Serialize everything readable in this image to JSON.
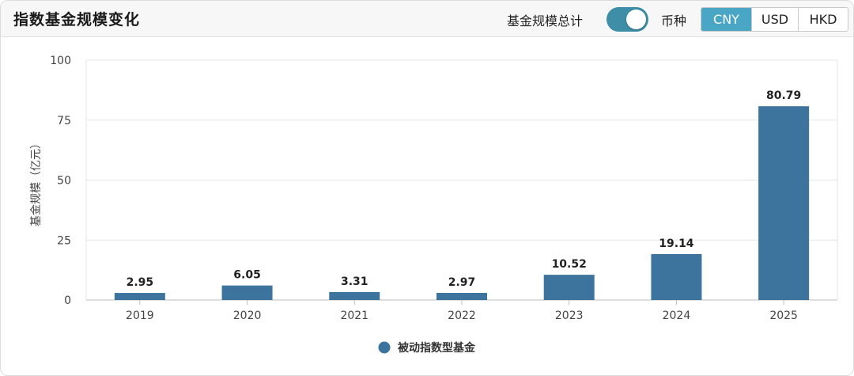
{
  "header": {
    "title": "指数基金规模变化",
    "total_toggle_label": "基金规模总计",
    "total_toggle_on": true,
    "currency_label": "币种",
    "currencies": [
      "CNY",
      "USD",
      "HKD"
    ],
    "selected_currency": "CNY"
  },
  "colors": {
    "bar": "#3c749d",
    "accent": "#49a6c4",
    "toggle": "#3d8ea6"
  },
  "chart_data": {
    "type": "bar",
    "categories": [
      "2019",
      "2020",
      "2021",
      "2022",
      "2023",
      "2024",
      "2025"
    ],
    "series": [
      {
        "name": "被动指数型基金",
        "values": [
          2.95,
          6.05,
          3.31,
          2.97,
          10.52,
          19.14,
          80.79
        ]
      }
    ],
    "data_labels": [
      "2.95",
      "6.05",
      "3.31",
      "2.97",
      "10.52",
      "19.14",
      "80.79"
    ],
    "ylabel": "基金规模（亿元）",
    "ylim": [
      0,
      100
    ],
    "yticks": [
      0,
      25,
      50,
      75,
      100
    ],
    "grid": true,
    "legend": "bottom-center"
  }
}
